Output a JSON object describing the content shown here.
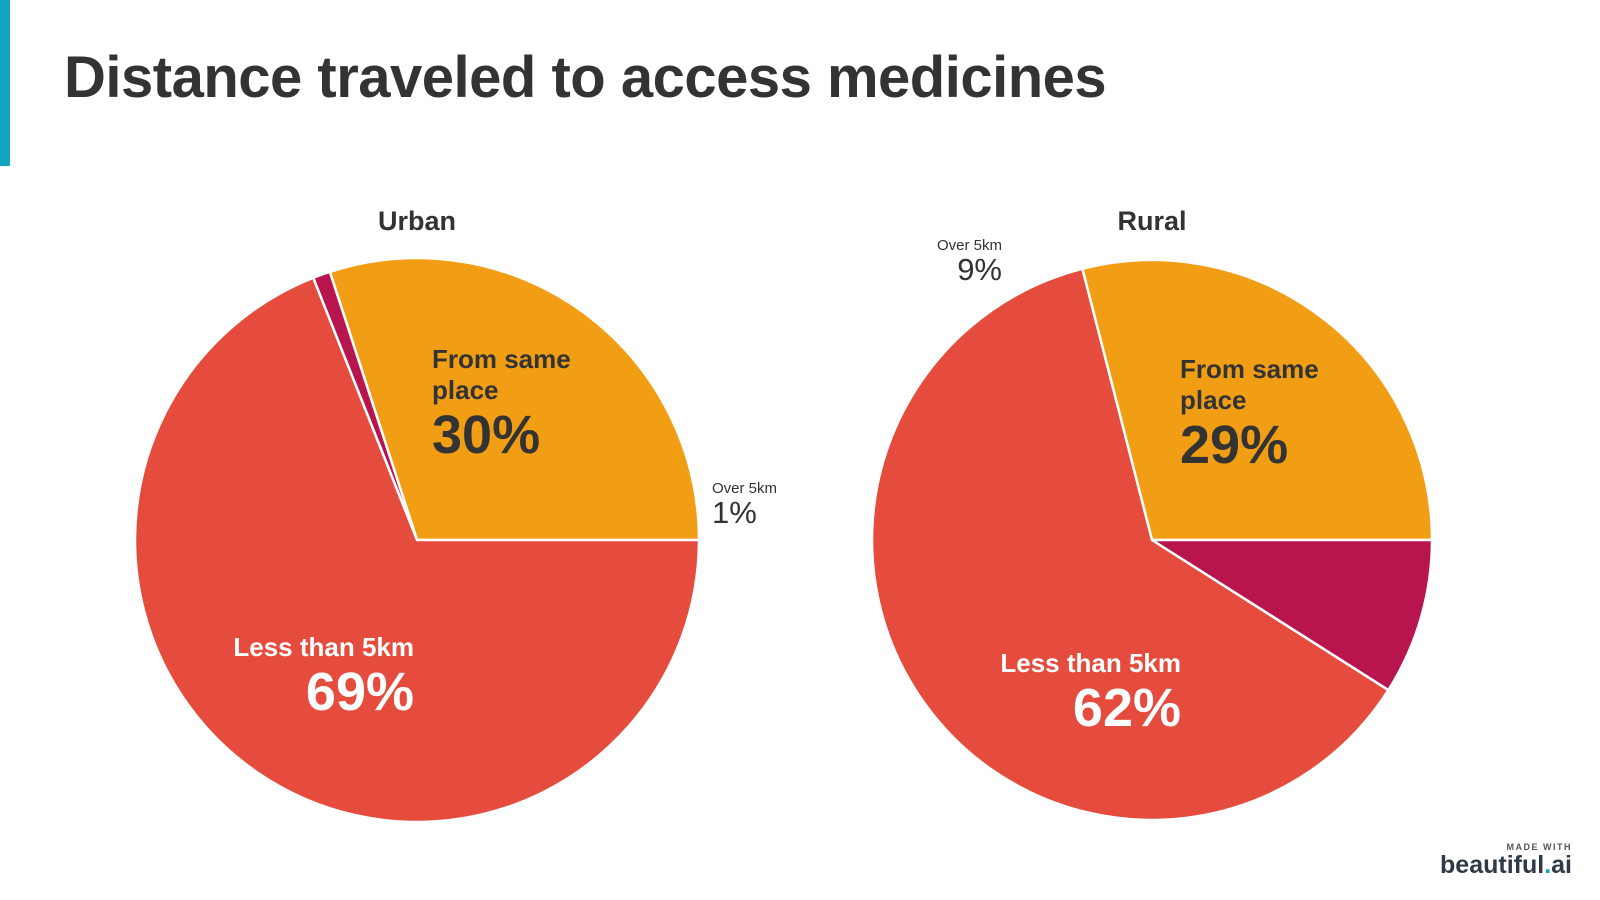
{
  "page": {
    "title": "Distance traveled to access medicines",
    "accent_color": "#12a4c0"
  },
  "branding": {
    "made_with": "MADE WITH",
    "brand": "beautiful",
    "dot": ".",
    "suffix": "ai"
  },
  "chart_data": [
    {
      "type": "pie",
      "title": "Urban",
      "slices": [
        {
          "label": "From same place",
          "label_lines": [
            "From same",
            "place"
          ],
          "value": 30,
          "display": "30%",
          "color": "#f29e14"
        },
        {
          "label": "Over 5km",
          "label_lines": [
            "Over 5km"
          ],
          "value": 1,
          "display": "1%",
          "color": "#b8154f"
        },
        {
          "label": "Less than 5km",
          "label_lines": [
            "Less than 5km"
          ],
          "value": 69,
          "display": "69%",
          "color": "#e64c3d"
        }
      ]
    },
    {
      "type": "pie",
      "title": "Rural",
      "slices": [
        {
          "label": "From same place",
          "label_lines": [
            "From same",
            "place"
          ],
          "value": 29,
          "display": "29%",
          "color": "#f29e14"
        },
        {
          "label": "Less than 5km",
          "label_lines": [
            "Less than 5km"
          ],
          "value": 62,
          "display": "62%",
          "color": "#e64c3d"
        },
        {
          "label": "Over 5km",
          "label_lines": [
            "Over 5km"
          ],
          "value": 9,
          "display": "9%",
          "color": "#b8154f"
        }
      ]
    }
  ]
}
